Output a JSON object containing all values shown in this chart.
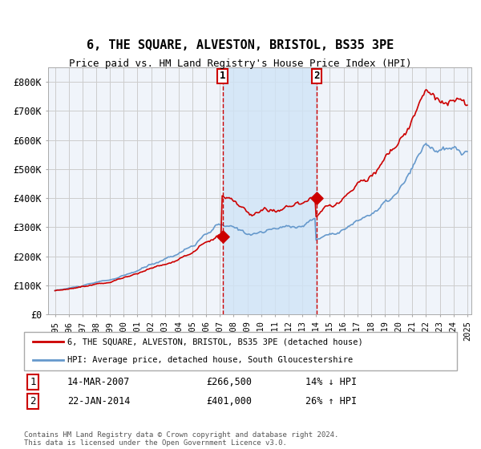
{
  "title": "6, THE SQUARE, ALVESTON, BRISTOL, BS35 3PE",
  "subtitle": "Price paid vs. HM Land Registry's House Price Index (HPI)",
  "legend_line1": "6, THE SQUARE, ALVESTON, BRISTOL, BS35 3PE (detached house)",
  "legend_line2": "HPI: Average price, detached house, South Gloucestershire",
  "transaction1_date": "14-MAR-2007",
  "transaction1_price": "£266,500",
  "transaction1_hpi": "14% ↓ HPI",
  "transaction2_date": "22-JAN-2014",
  "transaction2_price": "£401,000",
  "transaction2_hpi": "26% ↑ HPI",
  "footer": "Contains HM Land Registry data © Crown copyright and database right 2024.\nThis data is licensed under the Open Government Licence v3.0.",
  "hpi_color": "#6699cc",
  "price_color": "#cc0000",
  "background_color": "#ffffff",
  "plot_bg_color": "#f0f4fa",
  "shade_color": "#d0e4f7",
  "grid_color": "#cccccc",
  "ylim": [
    0,
    850000
  ],
  "yticks": [
    0,
    100000,
    200000,
    300000,
    400000,
    500000,
    600000,
    700000,
    800000
  ],
  "ytick_labels": [
    "£0",
    "£100K",
    "£200K",
    "£300K",
    "£400K",
    "£500K",
    "£600K",
    "£700K",
    "£800K"
  ],
  "year_start": 1995,
  "year_end": 2025,
  "transaction1_year": 2007.2,
  "transaction2_year": 2014.05
}
